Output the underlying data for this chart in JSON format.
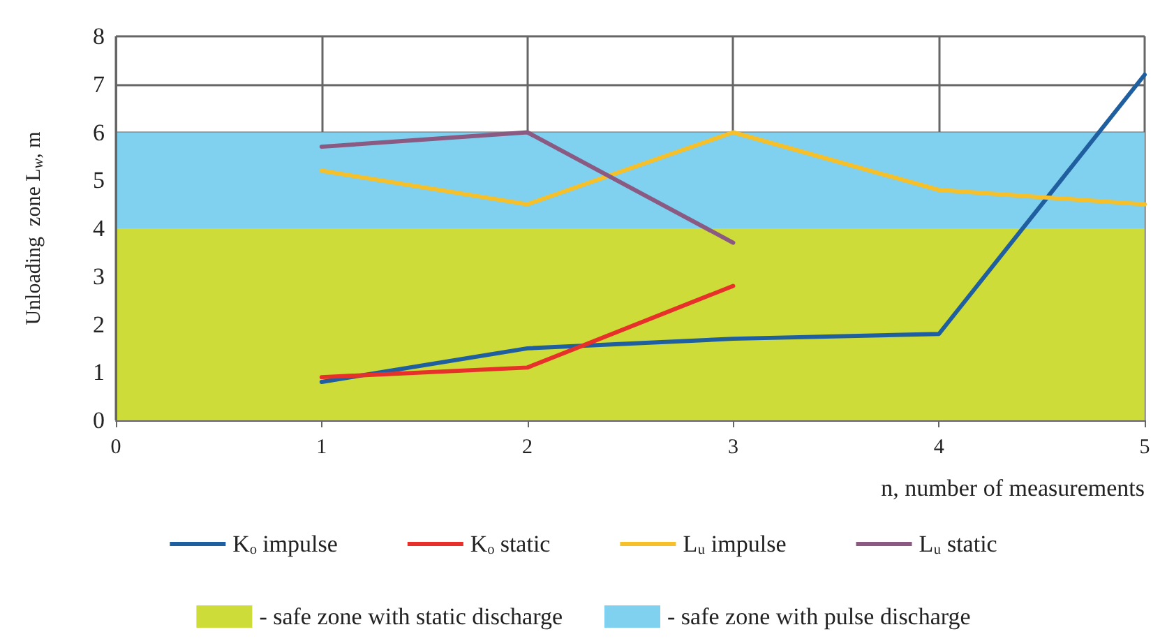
{
  "chart_data": {
    "type": "line",
    "xlabel": "n, number of measurements",
    "ylabel": "Unloading  zone L$_{w}$, m",
    "x": [
      1,
      2,
      3,
      4,
      5
    ],
    "series": [
      {
        "name": "Kₒ impulse",
        "color": "#1f5fa0",
        "values": [
          0.8,
          1.5,
          1.7,
          1.8,
          7.2
        ]
      },
      {
        "name": "Kₒ static",
        "color": "#e8302a",
        "values": [
          0.9,
          1.1,
          2.8,
          null,
          null
        ]
      },
      {
        "name": "Lᵤ impulse",
        "color": "#f5c02a",
        "values": [
          5.2,
          4.5,
          6.0,
          4.8,
          4.5
        ]
      },
      {
        "name": "Lᵤ static",
        "color": "#8a5a82",
        "values": [
          5.7,
          6.0,
          3.7,
          null,
          null
        ]
      }
    ],
    "bands": [
      {
        "axis": "y",
        "from": 0,
        "to": 4,
        "label": "- safe zone with static discharge",
        "color": "#cddc39"
      },
      {
        "axis": "y",
        "from": 4,
        "to": 6,
        "label": "- safe zone with pulse discharge",
        "color": "#80d0ef"
      }
    ],
    "xlim": [
      0,
      5
    ],
    "xticks": [
      0,
      1,
      2,
      3,
      4,
      5
    ],
    "ylim": [
      0,
      8
    ],
    "yticks": [
      0,
      1,
      2,
      3,
      4,
      5,
      6,
      7,
      8
    ],
    "grid": true,
    "legend": "bottom",
    "marker": "none",
    "line_style": "solid"
  }
}
